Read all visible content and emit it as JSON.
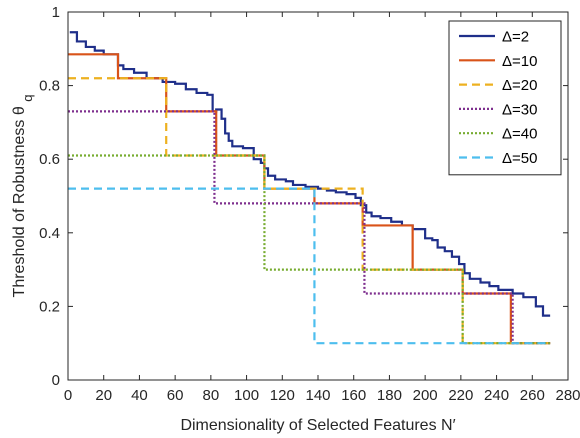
{
  "chart_data": {
    "type": "line",
    "title": "",
    "xlabel": "Dimensionality of Selected Features N′",
    "ylabel": "Threshold of Robustness θ",
    "ylabel_sub": "q",
    "xlim": [
      0,
      280
    ],
    "ylim": [
      0,
      1
    ],
    "xticks": [
      0,
      20,
      40,
      60,
      80,
      100,
      120,
      140,
      160,
      180,
      200,
      220,
      240,
      260,
      280
    ],
    "yticks": [
      0,
      0.2,
      0.4,
      0.6,
      0.8,
      1
    ],
    "ytick_labels": [
      "0",
      "0.2",
      "0.4",
      "0.6",
      "0.8",
      "1"
    ],
    "grid": false,
    "legend_position": "top-right",
    "series": [
      {
        "name": "Δ=2",
        "color": "#1f2f8a",
        "dash": "solid",
        "points": [
          [
            1,
            0.945
          ],
          [
            5,
            0.945
          ],
          [
            5,
            0.92
          ],
          [
            10,
            0.92
          ],
          [
            10,
            0.905
          ],
          [
            15,
            0.905
          ],
          [
            15,
            0.895
          ],
          [
            20,
            0.895
          ],
          [
            20,
            0.885
          ],
          [
            28,
            0.885
          ],
          [
            28,
            0.855
          ],
          [
            31,
            0.855
          ],
          [
            31,
            0.845
          ],
          [
            37,
            0.845
          ],
          [
            37,
            0.835
          ],
          [
            44,
            0.835
          ],
          [
            44,
            0.82
          ],
          [
            53,
            0.82
          ],
          [
            53,
            0.81
          ],
          [
            60,
            0.81
          ],
          [
            60,
            0.805
          ],
          [
            66,
            0.805
          ],
          [
            66,
            0.79
          ],
          [
            72,
            0.79
          ],
          [
            72,
            0.78
          ],
          [
            78,
            0.78
          ],
          [
            78,
            0.775
          ],
          [
            81,
            0.775
          ],
          [
            81,
            0.73
          ],
          [
            83,
            0.73
          ],
          [
            83,
            0.735
          ],
          [
            86,
            0.735
          ],
          [
            86,
            0.71
          ],
          [
            88,
            0.71
          ],
          [
            88,
            0.67
          ],
          [
            90,
            0.67
          ],
          [
            90,
            0.65
          ],
          [
            92,
            0.65
          ],
          [
            92,
            0.635
          ],
          [
            98,
            0.635
          ],
          [
            98,
            0.63
          ],
          [
            104,
            0.63
          ],
          [
            104,
            0.6
          ],
          [
            108,
            0.6
          ],
          [
            108,
            0.59
          ],
          [
            110,
            0.59
          ],
          [
            110,
            0.575
          ],
          [
            112,
            0.575
          ],
          [
            112,
            0.555
          ],
          [
            116,
            0.555
          ],
          [
            116,
            0.545
          ],
          [
            122,
            0.545
          ],
          [
            122,
            0.54
          ],
          [
            126,
            0.54
          ],
          [
            126,
            0.53
          ],
          [
            133,
            0.53
          ],
          [
            133,
            0.525
          ],
          [
            140,
            0.525
          ],
          [
            140,
            0.52
          ],
          [
            145,
            0.52
          ],
          [
            145,
            0.515
          ],
          [
            150,
            0.515
          ],
          [
            150,
            0.51
          ],
          [
            156,
            0.51
          ],
          [
            156,
            0.505
          ],
          [
            161,
            0.505
          ],
          [
            161,
            0.495
          ],
          [
            164,
            0.495
          ],
          [
            164,
            0.475
          ],
          [
            167,
            0.475
          ],
          [
            167,
            0.455
          ],
          [
            170,
            0.455
          ],
          [
            170,
            0.445
          ],
          [
            175,
            0.445
          ],
          [
            175,
            0.44
          ],
          [
            181,
            0.44
          ],
          [
            181,
            0.43
          ],
          [
            187,
            0.43
          ],
          [
            187,
            0.42
          ],
          [
            193,
            0.42
          ],
          [
            193,
            0.41
          ],
          [
            200,
            0.41
          ],
          [
            200,
            0.385
          ],
          [
            204,
            0.385
          ],
          [
            204,
            0.38
          ],
          [
            207,
            0.38
          ],
          [
            207,
            0.36
          ],
          [
            211,
            0.36
          ],
          [
            211,
            0.35
          ],
          [
            215,
            0.35
          ],
          [
            215,
            0.335
          ],
          [
            219,
            0.335
          ],
          [
            219,
            0.315
          ],
          [
            222,
            0.315
          ],
          [
            222,
            0.29
          ],
          [
            225,
            0.29
          ],
          [
            225,
            0.275
          ],
          [
            231,
            0.275
          ],
          [
            231,
            0.265
          ],
          [
            236,
            0.265
          ],
          [
            236,
            0.255
          ],
          [
            241,
            0.255
          ],
          [
            241,
            0.245
          ],
          [
            249,
            0.245
          ],
          [
            249,
            0.235
          ],
          [
            255,
            0.235
          ],
          [
            255,
            0.225
          ],
          [
            262,
            0.225
          ],
          [
            262,
            0.2
          ],
          [
            266,
            0.2
          ],
          [
            266,
            0.175
          ],
          [
            270,
            0.175
          ]
        ]
      },
      {
        "name": "Δ=10",
        "color": "#d95319",
        "dash": "solid",
        "points": [
          [
            0,
            0.885
          ],
          [
            28,
            0.885
          ],
          [
            28,
            0.82
          ],
          [
            55,
            0.82
          ],
          [
            55,
            0.73
          ],
          [
            83,
            0.73
          ],
          [
            83,
            0.61
          ],
          [
            110,
            0.61
          ],
          [
            110,
            0.52
          ],
          [
            138,
            0.52
          ],
          [
            138,
            0.48
          ],
          [
            165,
            0.48
          ],
          [
            165,
            0.42
          ],
          [
            193,
            0.42
          ],
          [
            193,
            0.3
          ],
          [
            221,
            0.3
          ],
          [
            221,
            0.235
          ],
          [
            248,
            0.235
          ],
          [
            248,
            0.1
          ],
          [
            270,
            0.1
          ]
        ]
      },
      {
        "name": "Δ=20",
        "color": "#edb120",
        "dash": "8,5",
        "points": [
          [
            0,
            0.82
          ],
          [
            55,
            0.82
          ],
          [
            55,
            0.61
          ],
          [
            110,
            0.61
          ],
          [
            110,
            0.52
          ],
          [
            165,
            0.52
          ],
          [
            165,
            0.3
          ],
          [
            221,
            0.3
          ],
          [
            221,
            0.1
          ],
          [
            270,
            0.1
          ]
        ]
      },
      {
        "name": "Δ=30",
        "color": "#7e2f8e",
        "dash": "2,2",
        "points": [
          [
            0,
            0.73
          ],
          [
            82,
            0.73
          ],
          [
            82,
            0.48
          ],
          [
            166,
            0.48
          ],
          [
            166,
            0.235
          ],
          [
            249,
            0.235
          ],
          [
            249,
            0.1
          ],
          [
            270,
            0.1
          ]
        ]
      },
      {
        "name": "Δ=40",
        "color": "#77ac30",
        "dash": "2,2",
        "points": [
          [
            0,
            0.61
          ],
          [
            110,
            0.61
          ],
          [
            110,
            0.3
          ],
          [
            221,
            0.3
          ],
          [
            221,
            0.1
          ],
          [
            270,
            0.1
          ]
        ]
      },
      {
        "name": "Δ=50",
        "color": "#4dbeee",
        "dash": "8,5",
        "points": [
          [
            0,
            0.52
          ],
          [
            138,
            0.52
          ],
          [
            138,
            0.1
          ],
          [
            270,
            0.1
          ]
        ]
      }
    ]
  }
}
